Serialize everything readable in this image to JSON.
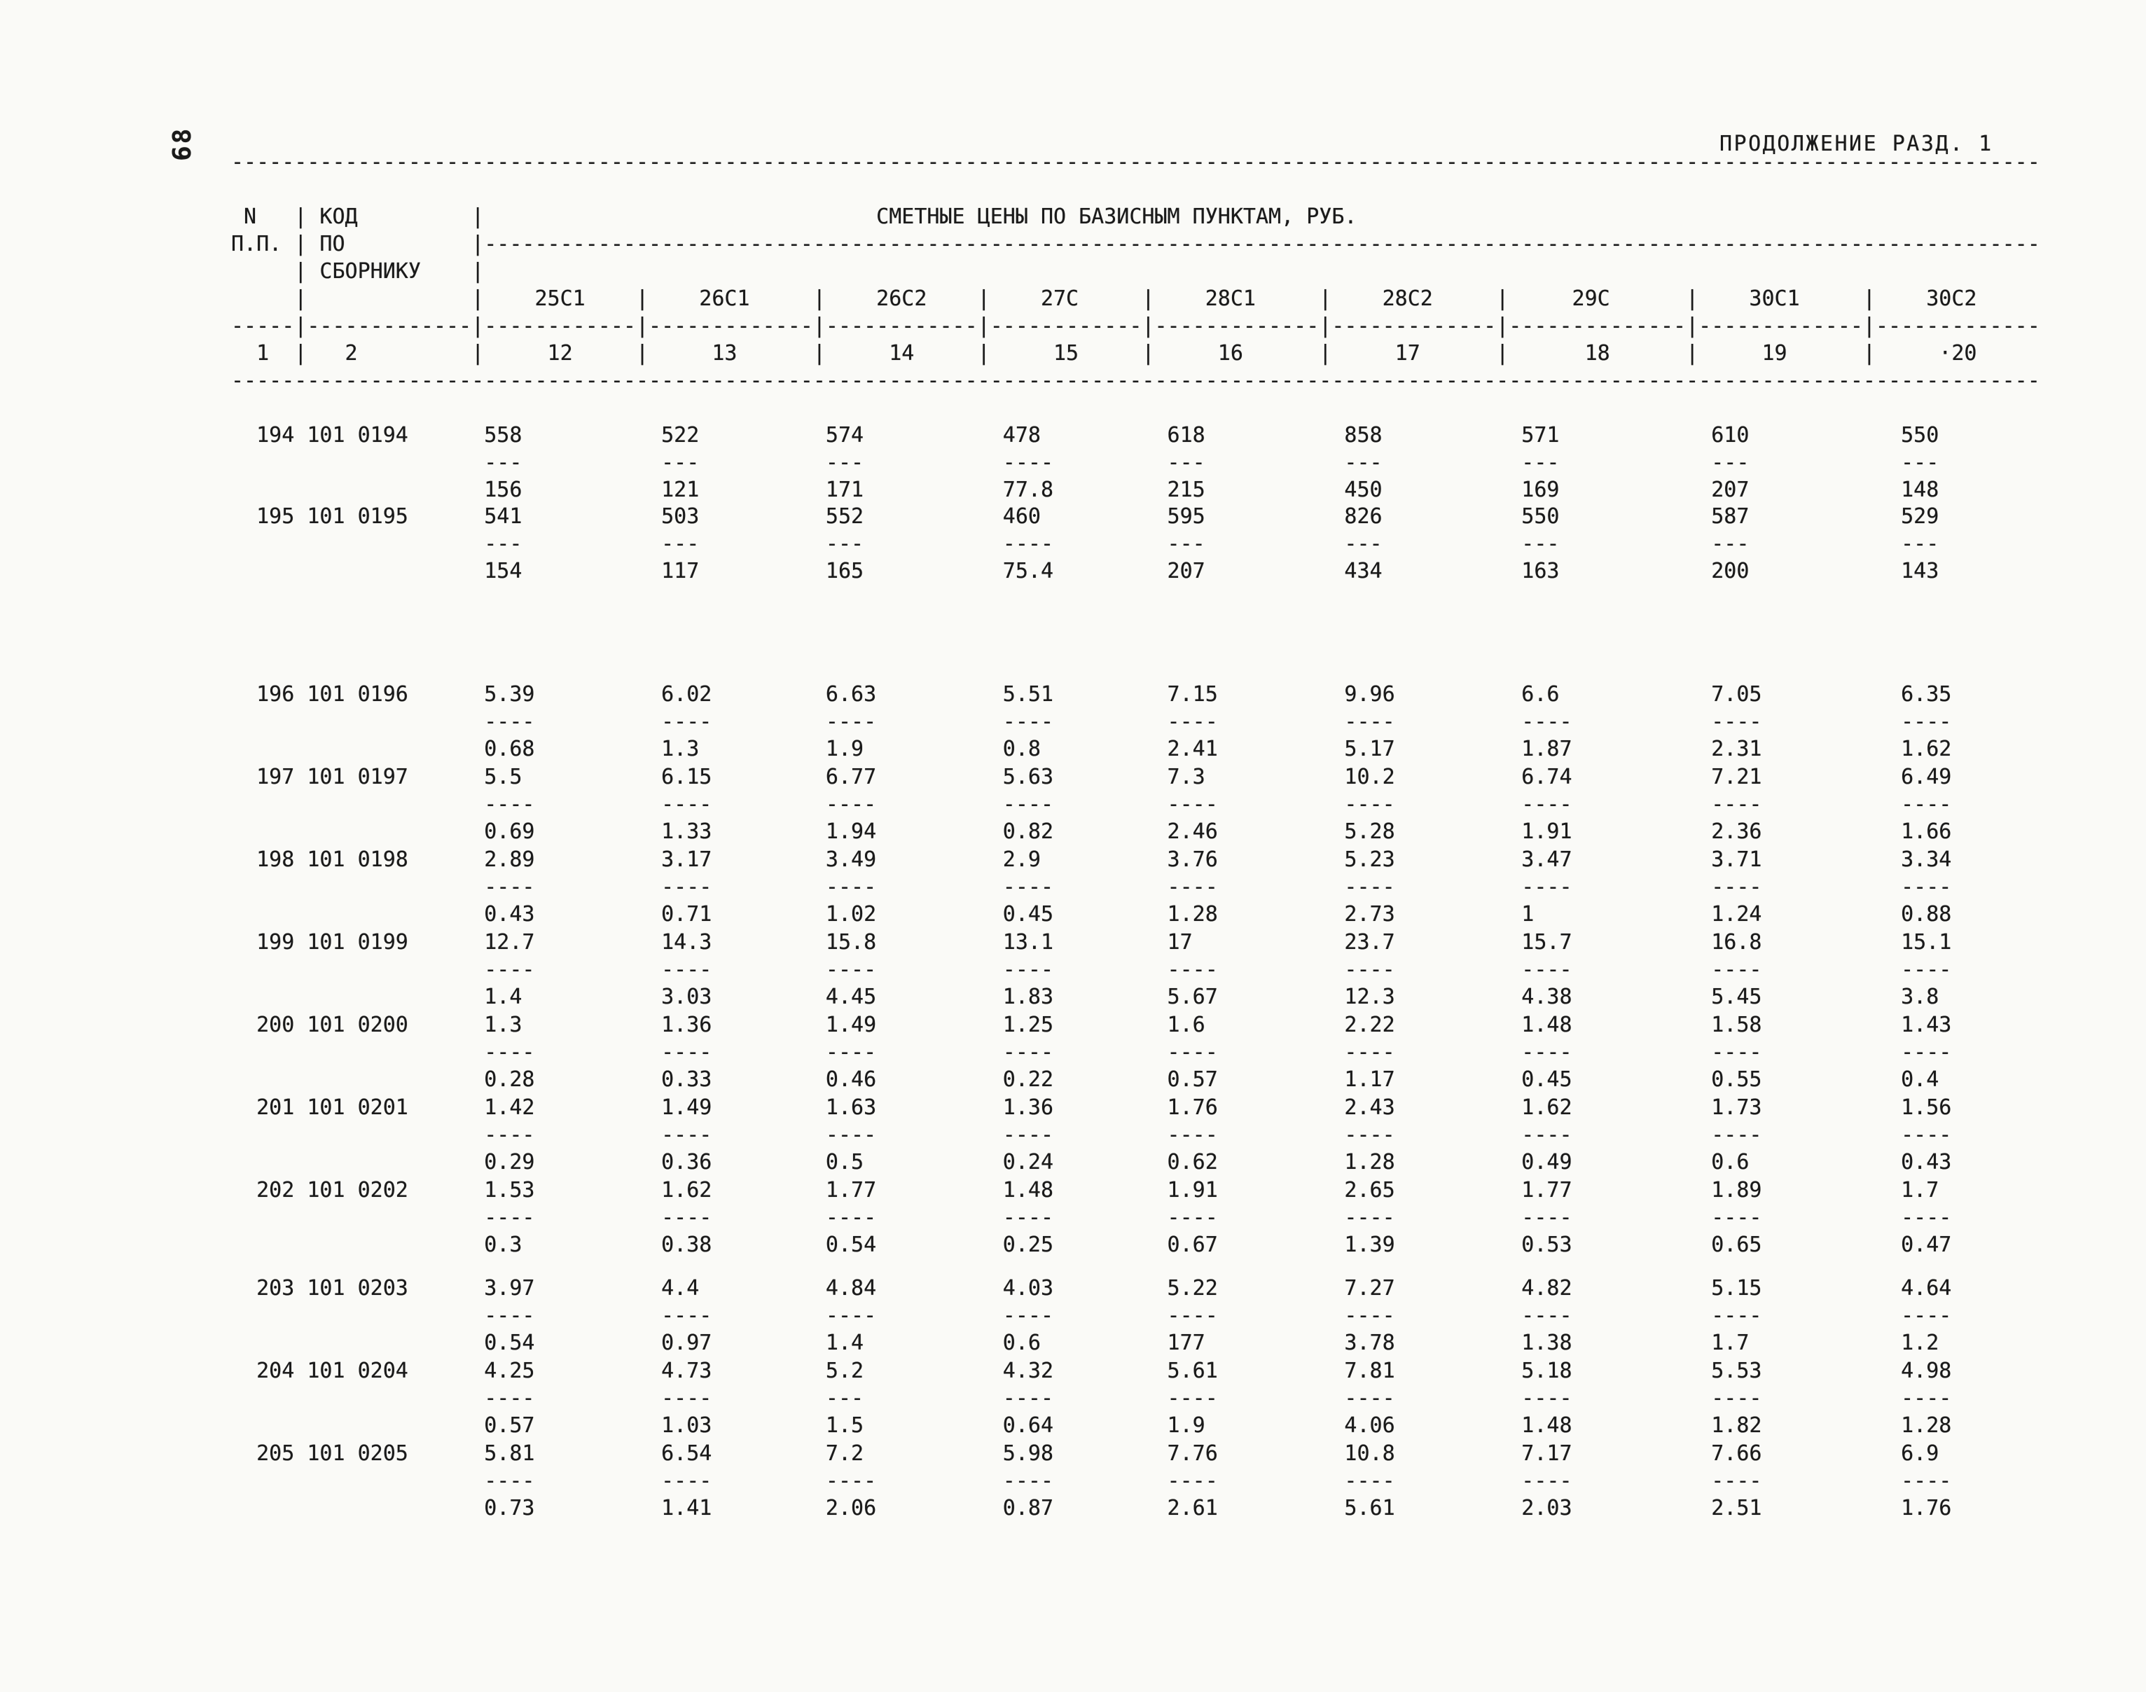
{
  "page": {
    "number": "68",
    "continuation": "ПРОДОЛЖЕНИЕ РАЗД. 1"
  },
  "table": {
    "row_header": [
      "N",
      "П.П."
    ],
    "code_header": [
      "КОД",
      "ПО",
      "СБОРНИКУ"
    ],
    "span_header": "СМЕТНЫЕ ЦЕНЫ ПО БАЗИСНЫМ ПУНКТАМ, РУБ.",
    "columns": [
      "25С1",
      "26С1",
      "26С2",
      "27С",
      "28С1",
      "28С2",
      "29С",
      "30С1",
      "30С2"
    ],
    "row_col_number": "1",
    "code_col_number": "2",
    "column_numbers": [
      "12",
      "13",
      "14",
      "15",
      "16",
      "17",
      "18",
      "19",
      "·20"
    ],
    "rows": [
      {
        "num": "194",
        "code": "101 0194",
        "values": [
          [
            "558",
            "156"
          ],
          [
            "522",
            "121"
          ],
          [
            "574",
            "171"
          ],
          [
            "478",
            "77.8"
          ],
          [
            "618",
            "215"
          ],
          [
            "858",
            "450"
          ],
          [
            "571",
            "169"
          ],
          [
            "610",
            "207"
          ],
          [
            "550",
            "148"
          ]
        ]
      },
      {
        "num": "195",
        "code": "101 0195",
        "values": [
          [
            "541",
            "154"
          ],
          [
            "503",
            "117"
          ],
          [
            "552",
            "165"
          ],
          [
            "460",
            "75.4"
          ],
          [
            "595",
            "207"
          ],
          [
            "826",
            "434"
          ],
          [
            "550",
            "163"
          ],
          [
            "587",
            "200"
          ],
          [
            "529",
            "143"
          ]
        ]
      },
      {
        "num": "196",
        "code": "101 0196",
        "values": [
          [
            "5.39",
            "0.68"
          ],
          [
            "6.02",
            "1.3"
          ],
          [
            "6.63",
            "1.9"
          ],
          [
            "5.51",
            "0.8"
          ],
          [
            "7.15",
            "2.41"
          ],
          [
            "9.96",
            "5.17"
          ],
          [
            "6.6",
            "1.87"
          ],
          [
            "7.05",
            "2.31"
          ],
          [
            "6.35",
            "1.62"
          ]
        ]
      },
      {
        "num": "197",
        "code": "101 0197",
        "values": [
          [
            "5.5",
            "0.69"
          ],
          [
            "6.15",
            "1.33"
          ],
          [
            "6.77",
            "1.94"
          ],
          [
            "5.63",
            "0.82"
          ],
          [
            "7.3",
            "2.46"
          ],
          [
            "10.2",
            "5.28"
          ],
          [
            "6.74",
            "1.91"
          ],
          [
            "7.21",
            "2.36"
          ],
          [
            "6.49",
            "1.66"
          ]
        ]
      },
      {
        "num": "198",
        "code": "101 0198",
        "values": [
          [
            "2.89",
            "0.43"
          ],
          [
            "3.17",
            "0.71"
          ],
          [
            "3.49",
            "1.02"
          ],
          [
            "2.9",
            "0.45"
          ],
          [
            "3.76",
            "1.28"
          ],
          [
            "5.23",
            "2.73"
          ],
          [
            "3.47",
            "1"
          ],
          [
            "3.71",
            "1.24"
          ],
          [
            "3.34",
            "0.88"
          ]
        ]
      },
      {
        "num": "199",
        "code": "101 0199",
        "values": [
          [
            "12.7",
            "1.4"
          ],
          [
            "14.3",
            "3.03"
          ],
          [
            "15.8",
            "4.45"
          ],
          [
            "13.1",
            "1.83"
          ],
          [
            "17",
            "5.67"
          ],
          [
            "23.7",
            "12.3"
          ],
          [
            "15.7",
            "4.38"
          ],
          [
            "16.8",
            "5.45"
          ],
          [
            "15.1",
            "3.8"
          ]
        ]
      },
      {
        "num": "200",
        "code": "101 0200",
        "values": [
          [
            "1.3",
            "0.28"
          ],
          [
            "1.36",
            "0.33"
          ],
          [
            "1.49",
            "0.46"
          ],
          [
            "1.25",
            "0.22"
          ],
          [
            "1.6",
            "0.57"
          ],
          [
            "2.22",
            "1.17"
          ],
          [
            "1.48",
            "0.45"
          ],
          [
            "1.58",
            "0.55"
          ],
          [
            "1.43",
            "0.4"
          ]
        ]
      },
      {
        "num": "201",
        "code": "101 0201",
        "values": [
          [
            "1.42",
            "0.29"
          ],
          [
            "1.49",
            "0.36"
          ],
          [
            "1.63",
            "0.5"
          ],
          [
            "1.36",
            "0.24"
          ],
          [
            "1.76",
            "0.62"
          ],
          [
            "2.43",
            "1.28"
          ],
          [
            "1.62",
            "0.49"
          ],
          [
            "1.73",
            "0.6"
          ],
          [
            "1.56",
            "0.43"
          ]
        ]
      },
      {
        "num": "202",
        "code": "101 0202",
        "values": [
          [
            "1.53",
            "0.3"
          ],
          [
            "1.62",
            "0.38"
          ],
          [
            "1.77",
            "0.54"
          ],
          [
            "1.48",
            "0.25"
          ],
          [
            "1.91",
            "0.67"
          ],
          [
            "2.65",
            "1.39"
          ],
          [
            "1.77",
            "0.53"
          ],
          [
            "1.89",
            "0.65"
          ],
          [
            "1.7",
            "0.47"
          ]
        ]
      },
      {
        "num": "203",
        "code": "101 0203",
        "values": [
          [
            "3.97",
            "0.54"
          ],
          [
            "4.4",
            "0.97"
          ],
          [
            "4.84",
            "1.4"
          ],
          [
            "4.03",
            "0.6"
          ],
          [
            "5.22",
            "177"
          ],
          [
            "7.27",
            "3.78"
          ],
          [
            "4.82",
            "1.38"
          ],
          [
            "5.15",
            "1.7"
          ],
          [
            "4.64",
            "1.2"
          ]
        ]
      },
      {
        "num": "204",
        "code": "101 0204",
        "values": [
          [
            "4.25",
            "0.57"
          ],
          [
            "4.73",
            "1.03"
          ],
          [
            "5.2",
            "1.5"
          ],
          [
            "4.32",
            "0.64"
          ],
          [
            "5.61",
            "1.9"
          ],
          [
            "7.81",
            "4.06"
          ],
          [
            "5.18",
            "1.48"
          ],
          [
            "5.53",
            "1.82"
          ],
          [
            "4.98",
            "1.28"
          ]
        ]
      },
      {
        "num": "205",
        "code": "101 0205",
        "values": [
          [
            "5.81",
            "0.73"
          ],
          [
            "6.54",
            "1.41"
          ],
          [
            "7.2",
            "2.06"
          ],
          [
            "5.98",
            "0.87"
          ],
          [
            "7.76",
            "2.61"
          ],
          [
            "10.8",
            "5.61"
          ],
          [
            "7.17",
            "2.03"
          ],
          [
            "7.66",
            "2.51"
          ],
          [
            "6.9",
            "1.76"
          ]
        ]
      }
    ]
  }
}
